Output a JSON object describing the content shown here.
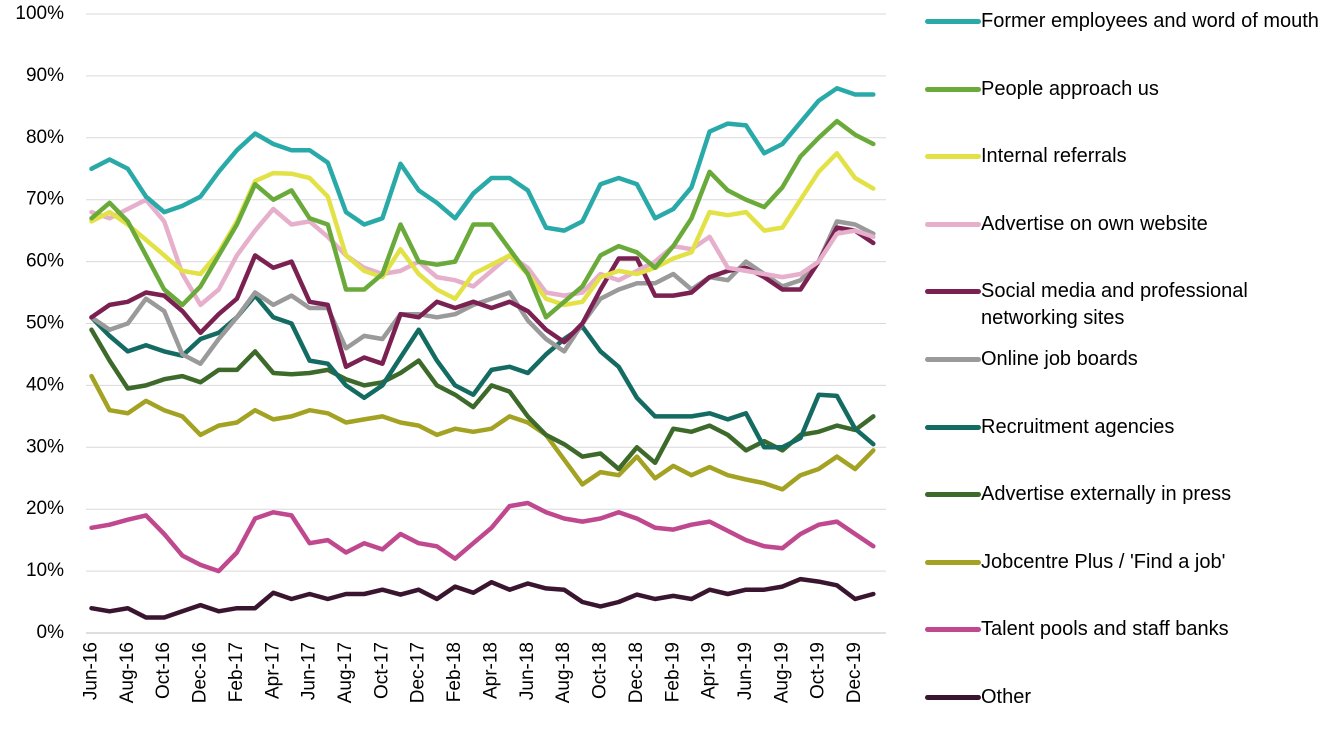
{
  "chart_data": {
    "type": "line",
    "categories": [
      "Jun-16",
      null,
      "Aug-16",
      null,
      "Oct-16",
      null,
      "Dec-16",
      null,
      "Feb-17",
      null,
      "Apr-17",
      null,
      "Jun-17",
      null,
      "Aug-17",
      null,
      "Oct-17",
      null,
      "Dec-17",
      null,
      "Feb-18",
      null,
      "Apr-18",
      null,
      "Jun-18",
      null,
      "Aug-18",
      null,
      "Oct-18",
      null,
      "Dec-18",
      null,
      "Feb-19",
      null,
      "Apr-19",
      null,
      "Jun-19",
      null,
      "Aug-19",
      null,
      "Oct-19",
      null,
      "Dec-19",
      null
    ],
    "ylim": [
      0,
      100
    ],
    "yticks": [
      {
        "value": 0,
        "label": "0%"
      },
      {
        "value": 10,
        "label": "10%"
      },
      {
        "value": 20,
        "label": "20%"
      },
      {
        "value": 30,
        "label": "30%"
      },
      {
        "value": 40,
        "label": "40%"
      },
      {
        "value": 50,
        "label": "50%"
      },
      {
        "value": 60,
        "label": "60%"
      },
      {
        "value": 70,
        "label": "70%"
      },
      {
        "value": 80,
        "label": "80%"
      },
      {
        "value": 90,
        "label": "90%"
      },
      {
        "value": 100,
        "label": "100%"
      }
    ],
    "grid": true,
    "legend": "right",
    "series": [
      {
        "name": "Former employees and word of mouth",
        "color": "#2aa9a9",
        "values": [
          75,
          76.5,
          75,
          70.5,
          68,
          69,
          70.5,
          74.5,
          78,
          80.7,
          79,
          78,
          78,
          76,
          68,
          66,
          67,
          75.8,
          71.5,
          69.5,
          67,
          71,
          73.5,
          73.5,
          71.5,
          65.5,
          65,
          66.5,
          72.5,
          73.5,
          72.5,
          67,
          68.5,
          72,
          81,
          82.3,
          82,
          77.5,
          79,
          82.5,
          86,
          88,
          87,
          87
        ]
      },
      {
        "name": "People approach us",
        "color": "#6aaa3a",
        "values": [
          67,
          69.5,
          66.5,
          61,
          55.5,
          53,
          56,
          61,
          66,
          72.5,
          70,
          71.5,
          67,
          66,
          55.5,
          55.5,
          58,
          66,
          60,
          59.5,
          60,
          66,
          66,
          62,
          58,
          51,
          53.5,
          56,
          61,
          62.5,
          61.5,
          59,
          62.5,
          67,
          74.5,
          71.5,
          70,
          68.8,
          72,
          77,
          80,
          82.7,
          80.5,
          79
        ]
      },
      {
        "name": "Internal referrals",
        "color": "#e2e247",
        "values": [
          66.5,
          68,
          66,
          63.5,
          61,
          58.5,
          58,
          61.5,
          66.5,
          73,
          74.3,
          74.2,
          73.5,
          70.5,
          61,
          58.5,
          57.5,
          62,
          58,
          55.5,
          54,
          58,
          59.5,
          61,
          58,
          54,
          53,
          53.5,
          57.5,
          58.5,
          58,
          59,
          60.5,
          61.5,
          68,
          67.5,
          68,
          65,
          65.5,
          70,
          74.5,
          77.5,
          73.5,
          71.8
        ]
      },
      {
        "name": "Advertise on own website",
        "color": "#e6afcb",
        "values": [
          68,
          67,
          68.5,
          70,
          66.5,
          58,
          53,
          55.5,
          61,
          65,
          68.5,
          66,
          66.5,
          64,
          61,
          59,
          58,
          58.5,
          60,
          57.5,
          57,
          56,
          58.5,
          61,
          59,
          55,
          54.5,
          55,
          58,
          57,
          58.5,
          60,
          62.5,
          62,
          64,
          59,
          58.5,
          58,
          57.5,
          58,
          60,
          64.5,
          65,
          64
        ]
      },
      {
        "name": "Social media and professional networking sites",
        "color": "#7a2152",
        "values": [
          51,
          53,
          53.5,
          55,
          54.5,
          52,
          48.5,
          51.5,
          54,
          61,
          59,
          60,
          53.5,
          53,
          43,
          44.5,
          43.5,
          51.5,
          51,
          53.5,
          52.5,
          53.5,
          52.5,
          53.5,
          52,
          49,
          47,
          50,
          55.5,
          60.5,
          60.5,
          54.5,
          54.5,
          55,
          57.5,
          58.5,
          59,
          57.5,
          55.5,
          55.5,
          60,
          65.5,
          65,
          63
        ]
      },
      {
        "name": "Online job boards",
        "color": "#9a9a9a",
        "values": [
          51,
          49,
          50,
          54,
          52,
          45,
          43.5,
          47.5,
          51,
          55,
          53,
          54.5,
          52.5,
          52.5,
          46,
          48,
          47.5,
          51.5,
          51.5,
          51,
          51.5,
          53,
          54,
          55,
          50.5,
          47.5,
          45.5,
          50,
          54,
          55.5,
          56.5,
          56.5,
          58,
          55.5,
          57.5,
          57,
          60,
          58,
          56,
          57,
          60,
          66.5,
          66,
          64.5
        ]
      },
      {
        "name": "Recruitment agencies",
        "color": "#136b62",
        "values": [
          51,
          48,
          45.5,
          46.5,
          45.5,
          44.8,
          47.5,
          48.5,
          51,
          54.5,
          51,
          50,
          44,
          43.5,
          40,
          38,
          40,
          44.5,
          49,
          44,
          40,
          38.5,
          42.5,
          43,
          42,
          45,
          47.5,
          49.5,
          45.5,
          43,
          38,
          35,
          35,
          35,
          35.5,
          34.5,
          35.5,
          30,
          30,
          31.5,
          38.5,
          38.3,
          33,
          30.5
        ]
      },
      {
        "name": "Advertise externally in press",
        "color": "#3d6a2b",
        "values": [
          49,
          44,
          39.5,
          40,
          41,
          41.5,
          40.5,
          42.5,
          42.5,
          45.5,
          42,
          41.8,
          42,
          42.5,
          41,
          40,
          40.5,
          42,
          44,
          40,
          38.5,
          36.5,
          40,
          39,
          35,
          32,
          30.5,
          28.5,
          29,
          26.5,
          30,
          27.5,
          33,
          32.5,
          33.5,
          32,
          29.5,
          31,
          29.5,
          32,
          32.5,
          33.5,
          32.8,
          35
        ]
      },
      {
        "name": "Jobcentre Plus / 'Find a job'",
        "color": "#a3a223",
        "values": [
          41.5,
          36,
          35.5,
          37.5,
          36,
          35,
          32,
          33.5,
          34,
          36,
          34.5,
          35,
          36,
          35.5,
          34,
          34.5,
          35,
          34,
          33.5,
          32,
          33,
          32.5,
          33,
          35,
          34,
          32,
          28,
          24,
          26,
          25.5,
          28.5,
          25,
          27,
          25.5,
          26.8,
          25.5,
          24.8,
          24.2,
          23.2,
          25.5,
          26.5,
          28.5,
          26.5,
          29.5
        ]
      },
      {
        "name": "Talent pools and staff banks",
        "color": "#c0488e",
        "values": [
          17,
          17.5,
          18.3,
          19,
          16,
          12.5,
          11,
          10,
          13,
          18.5,
          19.5,
          19,
          14.5,
          15,
          13,
          14.5,
          13.5,
          16,
          14.5,
          14,
          12,
          14.5,
          17,
          20.5,
          21,
          19.5,
          18.5,
          18,
          18.5,
          19.5,
          18.5,
          17,
          16.7,
          17.5,
          18,
          16.5,
          15,
          14,
          13.7,
          16,
          17.5,
          18,
          16,
          14
        ]
      },
      {
        "name": "Other",
        "color": "#3a1530",
        "values": [
          4,
          3.5,
          4,
          2.5,
          2.5,
          3.5,
          4.5,
          3.5,
          4,
          4,
          6.5,
          5.5,
          6.3,
          5.5,
          6.3,
          6.3,
          7,
          6.2,
          7,
          5.5,
          7.5,
          6.5,
          8.2,
          7,
          8,
          7.2,
          7,
          5,
          4.3,
          5,
          6.2,
          5.5,
          6,
          5.5,
          7,
          6.3,
          7,
          7,
          7.5,
          8.7,
          8.3,
          7.7,
          5.5,
          6.3
        ]
      }
    ]
  }
}
